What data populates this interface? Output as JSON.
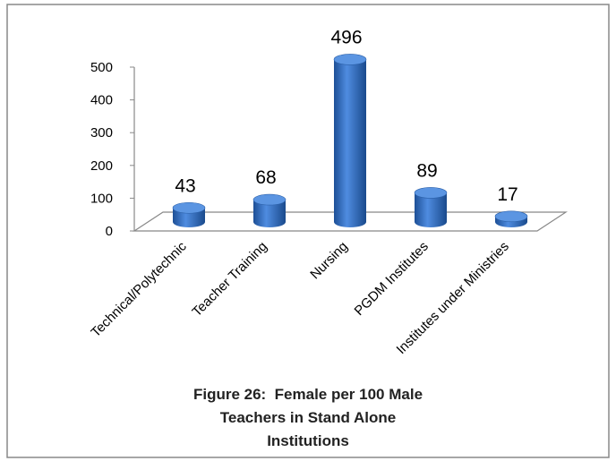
{
  "chart_data": {
    "type": "bar",
    "title": "Figure 26:  Female per 100 Male Teachers in Stand Alone Institutions",
    "categories": [
      "Technical/Polytechnic",
      "Teacher Training",
      "Nursing",
      "PGDM Institutes",
      "Institutes under Ministries"
    ],
    "values": [
      43,
      68,
      496,
      89,
      17
    ],
    "color": "#2e6fc0",
    "ylim": [
      0,
      500
    ],
    "yticks": [
      0,
      100,
      200,
      300,
      400,
      500
    ]
  }
}
